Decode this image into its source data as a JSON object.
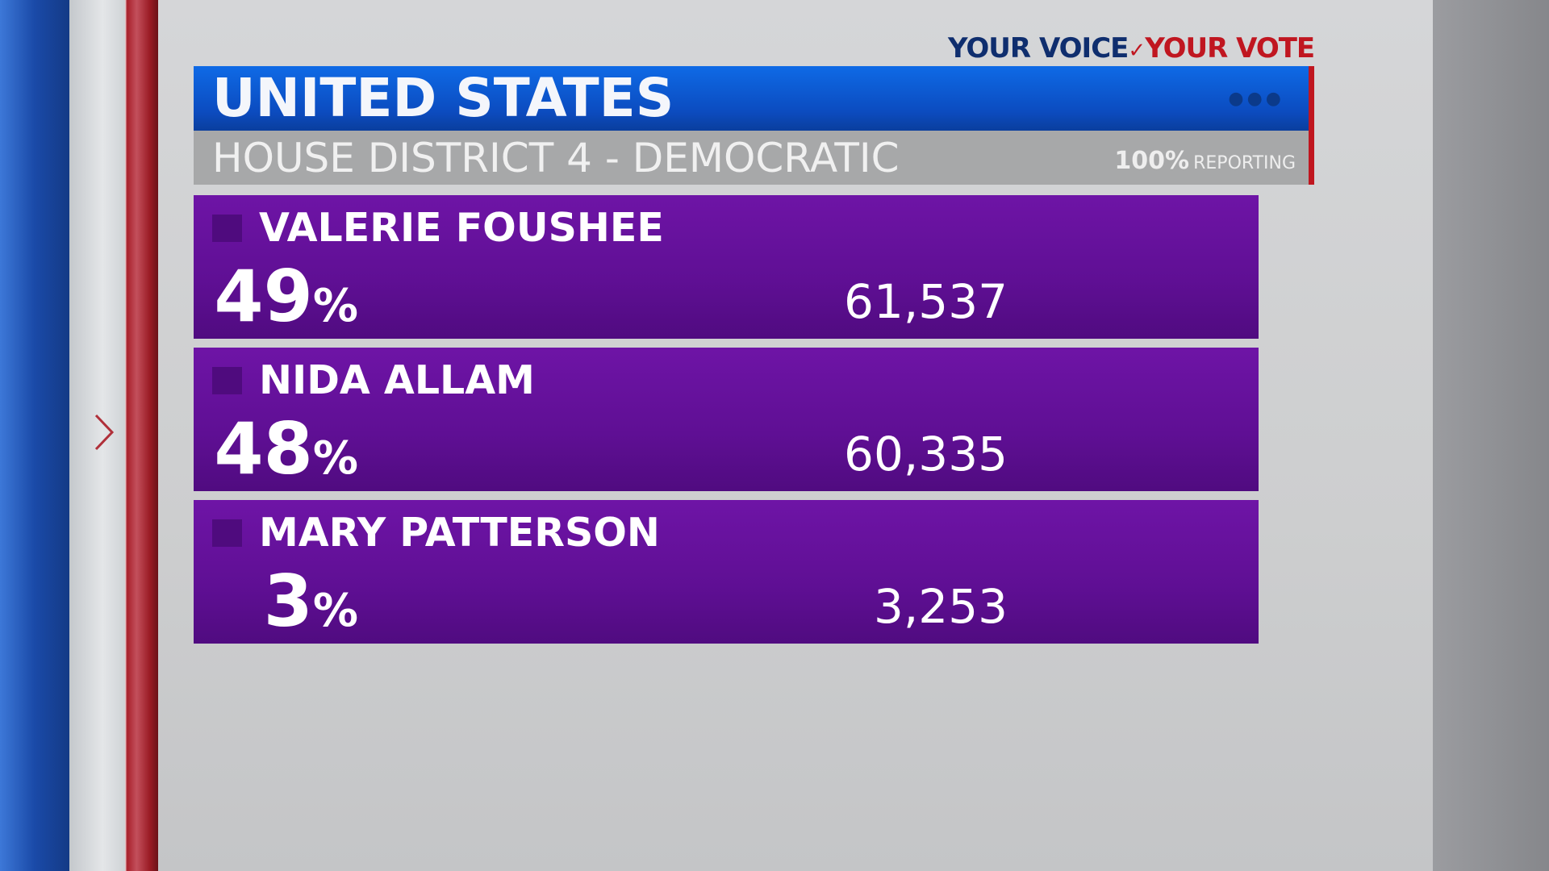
{
  "logo": {
    "part1": "YOUR VOICE",
    "separator": "✓",
    "part2": "YOUR VOTE"
  },
  "header": {
    "title": "UNITED STATES",
    "menu_icon": "dots-icon"
  },
  "race": {
    "label": "HOUSE DISTRICT 4 - DEMOCRATIC",
    "reporting_percent": "100%",
    "reporting_label": "REPORTING"
  },
  "candidates": [
    {
      "name": "VALERIE FOUSHEE",
      "percent": "49",
      "percent_sign": "%",
      "votes": "61,537"
    },
    {
      "name": "NIDA ALLAM",
      "percent": "48",
      "percent_sign": "%",
      "votes": "60,335"
    },
    {
      "name": "MARY PATTERSON",
      "percent": "3",
      "percent_sign": "%",
      "votes": "3,253"
    }
  ],
  "colors": {
    "header_blue": "#0c4cc0",
    "candidate_purple": "#5f0f94",
    "accent_red": "#c0161f",
    "subbar_gray": "#a7a8a9"
  }
}
